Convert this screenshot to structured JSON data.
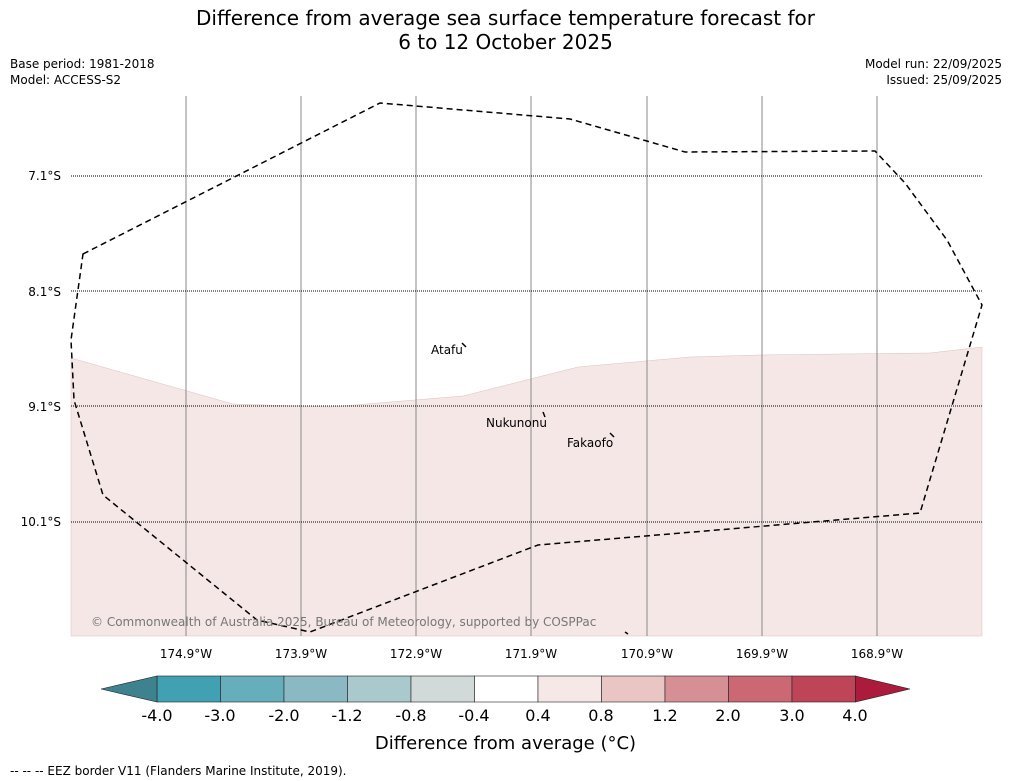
{
  "title_line1": "Difference from average sea surface temperature forecast for",
  "title_line2": "6 to 12 October 2025",
  "base_period": "Base period: 1981-2018",
  "model": "Model: ACCESS-S2",
  "model_run": "Model run: 22/09/2025",
  "issued": "Issued: 25/09/2025",
  "latitudes": [
    "7.1°S",
    "8.1°S",
    "9.1°S",
    "10.1°S"
  ],
  "longitudes": [
    "174.9°W",
    "173.9°W",
    "172.9°W",
    "171.9°W",
    "170.9°W",
    "169.9°W",
    "168.9°W"
  ],
  "places": {
    "atafu": "Atafu",
    "nukunonu": "Nukunonu",
    "fakaofo": "Fakaofo"
  },
  "copyright": "© Commonwealth of Australia 2025, Bureau of Meteorology, supported by COSPPac",
  "colorbar": {
    "ticks": [
      "-4.0",
      "-3.0",
      "-2.0",
      "-1.2",
      "-0.8",
      "-0.4",
      "0.4",
      "0.8",
      "1.2",
      "2.0",
      "3.0",
      "4.0"
    ],
    "colors": [
      "#41a0b2",
      "#67aebd",
      "#8ab9c3",
      "#a9c9cc",
      "#d1d9d9",
      "#ffffff",
      "#f5e8e7",
      "#e9c6c3",
      "#d78f96",
      "#cb6874",
      "#be4558"
    ],
    "under_color": "#3e8290",
    "over_color": "#ac1b3b",
    "label": "Difference from average (°C)"
  },
  "map_fill_color": "#f4e7e6",
  "legend": "--  --  -- EEZ border V11 (Flanders Marine Institute, 2019)."
}
